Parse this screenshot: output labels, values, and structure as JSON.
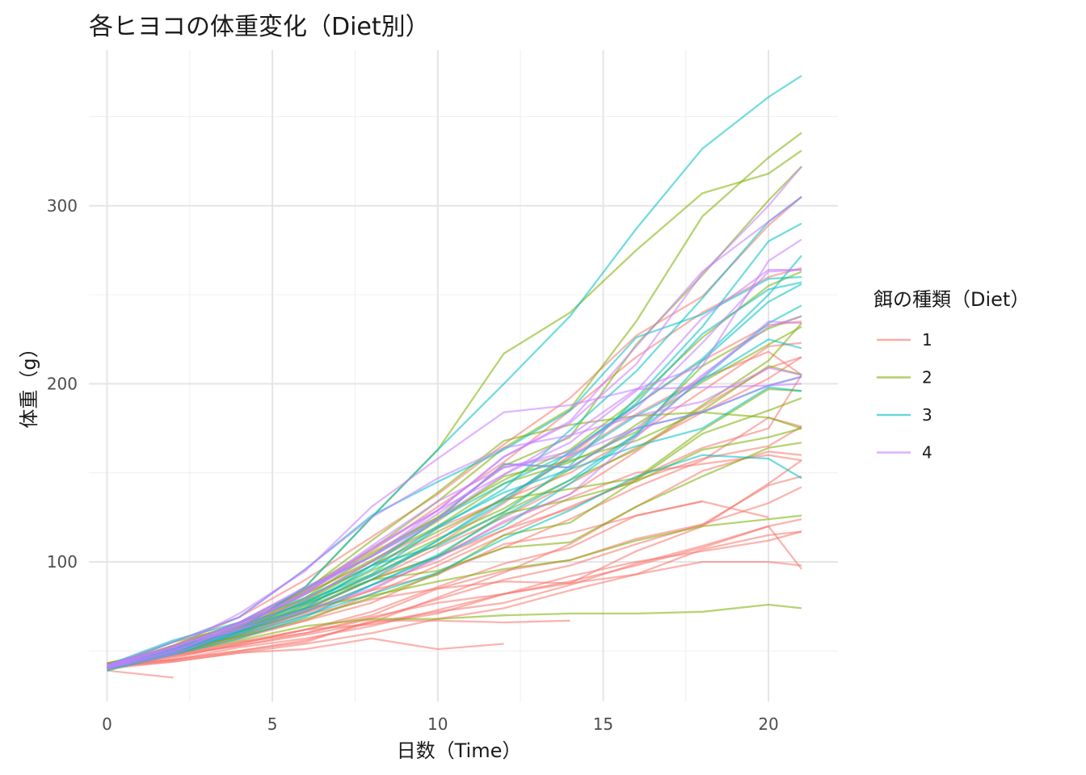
{
  "chart_data": {
    "type": "line",
    "title": "各ヒヨコの体重変化（Diet別）",
    "xlabel": "日数（Time）",
    "ylabel": "体重（g）",
    "xlim": [
      -0.55,
      22.1
    ],
    "ylim": [
      21.6,
      387.4
    ],
    "x_ticks": [
      0,
      5,
      10,
      15,
      20
    ],
    "y_ticks": [
      100,
      200,
      300
    ],
    "x_minor": [
      2.5,
      7.5,
      12.5,
      17.5
    ],
    "y_minor": [
      50,
      150,
      250,
      350
    ],
    "grid": true,
    "legend": {
      "title": "餌の種類（Diet）",
      "position": "right",
      "items": [
        {
          "label": "1",
          "color": "#F8766D"
        },
        {
          "label": "2",
          "color": "#7CAE00"
        },
        {
          "label": "3",
          "color": "#00BFC4"
        },
        {
          "label": "4",
          "color": "#C77CFF"
        }
      ]
    },
    "series_x": [
      0,
      2,
      4,
      6,
      8,
      10,
      12,
      14,
      16,
      18,
      20,
      21
    ],
    "chicks": [
      {
        "diet": "1",
        "weights": [
          40,
          46,
          54,
          62,
          72,
          86,
          99,
          108,
          126,
          134,
          125
        ]
      },
      {
        "diet": "1",
        "weights": [
          42,
          48,
          55,
          60,
          68,
          79,
          90,
          98,
          110,
          121,
          133,
          142
        ]
      },
      {
        "diet": "1",
        "weights": [
          43,
          48,
          53,
          59,
          66,
          72,
          77,
          87,
          99,
          109,
          120,
          124
        ]
      },
      {
        "diet": "1",
        "weights": [
          41,
          45,
          52,
          57,
          64,
          73,
          82,
          92,
          100,
          106,
          112,
          117
        ]
      },
      {
        "diet": "1",
        "weights": [
          41,
          44,
          49,
          54,
          60,
          68,
          74,
          84,
          93,
          100,
          100,
          98
        ]
      },
      {
        "diet": "1",
        "weights": [
          41,
          49,
          59,
          72,
          87,
          100,
          118,
          136,
          150,
          155,
          160,
          157
        ]
      },
      {
        "diet": "1",
        "weights": [
          40,
          48,
          57,
          67,
          82,
          98,
          115,
          131,
          146,
          158,
          165,
          176
        ]
      },
      {
        "diet": "1",
        "weights": [
          42,
          49,
          60,
          73,
          90,
          108,
          125,
          144,
          164,
          184,
          203,
          215
        ]
      },
      {
        "diet": "1",
        "weights": [
          41,
          51,
          64,
          82,
          100,
          119,
          135,
          150,
          171,
          196,
          221,
          223
        ]
      },
      {
        "diet": "1",
        "weights": [
          42,
          50,
          63,
          79,
          98,
          115,
          136,
          159,
          183,
          203,
          218,
          205
        ]
      },
      {
        "diet": "1",
        "weights": [
          43,
          51,
          60,
          76,
          92,
          110,
          133,
          160,
          188,
          213,
          233,
          235
        ]
      },
      {
        "diet": "1",
        "weights": [
          41,
          52,
          66,
          84,
          106,
          131,
          156,
          185,
          215,
          240,
          260,
          265
        ]
      },
      {
        "diet": "1",
        "weights": [
          40,
          53,
          69,
          90,
          114,
          138,
          166,
          192,
          227,
          249,
          289,
          305
        ]
      },
      {
        "diet": "1",
        "weights": [
          42,
          50,
          61,
          71,
          84,
          93,
          110,
          116,
          126,
          134
        ]
      },
      {
        "diet": "1",
        "weights": [
          41,
          49,
          58,
          70,
          79,
          85,
          89,
          88,
          93,
          107,
          115,
          117
        ]
      },
      {
        "diet": "1",
        "weights": [
          41,
          47,
          53,
          60,
          69,
          77,
          82,
          89,
          98,
          108,
          120,
          96
        ]
      },
      {
        "diet": "1",
        "weights": [
          41,
          47,
          54,
          62,
          70,
          85,
          95,
          101,
          113,
          121,
          143,
          148
        ]
      },
      {
        "diet": "1",
        "weights": [
          40,
          44,
          49,
          51,
          57,
          51,
          54
        ]
      },
      {
        "diet": "1",
        "weights": [
          43,
          45,
          50,
          55,
          67,
          67,
          66,
          67
        ]
      },
      {
        "diet": "1",
        "weights": [
          41,
          49,
          58,
          67,
          77,
          94,
          108,
          124,
          142,
          157,
          181,
          176
        ]
      },
      {
        "diet": "1",
        "weights": [
          42,
          52,
          62,
          74,
          90,
          103,
          118,
          130,
          147,
          164,
          175,
          205
        ]
      },
      {
        "diet": "1",
        "weights": [
          41,
          45,
          50,
          56,
          66,
          80,
          94,
          110,
          131,
          151,
          162,
          160
        ]
      },
      {
        "diet": "1",
        "weights": [
          40,
          49,
          58,
          72,
          84,
          103,
          122,
          138,
          162,
          187,
          209,
          215
        ]
      },
      {
        "diet": "1",
        "weights": [
          39,
          35
        ]
      },
      {
        "diet": "1",
        "weights": [
          43,
          48,
          55,
          62,
          65,
          71,
          82,
          88,
          106,
          120,
          144,
          157
        ]
      },
      {
        "diet": "2",
        "weights": [
          40,
          50,
          62,
          86,
          125,
          163,
          217,
          240,
          275,
          307,
          318,
          331
        ]
      },
      {
        "diet": "2",
        "weights": [
          41,
          55,
          64,
          77,
          90,
          95,
          108,
          111,
          131,
          148,
          164,
          167
        ]
      },
      {
        "diet": "2",
        "weights": [
          43,
          52,
          61,
          73,
          90,
          103,
          127,
          135,
          145,
          163,
          170,
          175
        ]
      },
      {
        "diet": "2",
        "weights": [
          41,
          52,
          63,
          74,
          81,
          89,
          96,
          101,
          112,
          120,
          124,
          126
        ]
      },
      {
        "diet": "2",
        "weights": [
          41,
          50,
          61,
          78,
          98,
          117,
          135,
          141,
          147,
          174,
          197,
          196
        ]
      },
      {
        "diet": "2",
        "weights": [
          40,
          52,
          62,
          82,
          101,
          120,
          144,
          156,
          173,
          210,
          231,
          238
        ]
      },
      {
        "diet": "2",
        "weights": [
          41,
          53,
          66,
          79,
          100,
          123,
          148,
          157,
          168,
          185,
          210,
          205
        ]
      },
      {
        "diet": "2",
        "weights": [
          39,
          50,
          62,
          80,
          104,
          125,
          154,
          170,
          222,
          261,
          303,
          322
        ]
      },
      {
        "diet": "2",
        "weights": [
          40,
          51,
          63,
          84,
          112,
          139,
          168,
          177,
          182,
          184,
          181,
          175
        ]
      },
      {
        "diet": "2",
        "weights": [
          41,
          49,
          63,
          85,
          107,
          134,
          164,
          186,
          235,
          294,
          327,
          341
        ]
      },
      {
        "diet": "2",
        "weights": [
          41,
          49,
          56,
          64,
          68,
          68,
          70,
          71,
          71,
          72,
          76,
          74
        ]
      },
      {
        "diet": "2",
        "weights": [
          41,
          48,
          59,
          75,
          93,
          110,
          128,
          146,
          163,
          188,
          213,
          234
        ]
      },
      {
        "diet": "2",
        "weights": [
          42,
          51,
          58,
          68,
          80,
          93,
          115,
          122,
          146,
          172,
          185,
          192
        ]
      },
      {
        "diet": "2",
        "weights": [
          43,
          51,
          62,
          77,
          95,
          113,
          130,
          152,
          177,
          201,
          222,
          232
        ]
      },
      {
        "diet": "2",
        "weights": [
          41,
          53,
          65,
          83,
          105,
          125,
          146,
          163,
          191,
          226,
          255,
          263
        ]
      },
      {
        "diet": "3",
        "weights": [
          41,
          49,
          61,
          74,
          98,
          109,
          128,
          154,
          192,
          232,
          280,
          290
        ]
      },
      {
        "diet": "3",
        "weights": [
          40,
          50,
          62,
          86,
          125,
          163,
          200,
          238,
          287,
          332,
          361,
          373
        ]
      },
      {
        "diet": "3",
        "weights": [
          41,
          55,
          69,
          96,
          126,
          145,
          163,
          185,
          226,
          239,
          259,
          260
        ]
      },
      {
        "diet": "3",
        "weights": [
          41,
          51,
          66,
          85,
          103,
          124,
          155,
          153,
          175,
          184,
          199,
          204
        ]
      },
      {
        "diet": "3",
        "weights": [
          41,
          49,
          61,
          74,
          90,
          112,
          134,
          162,
          188,
          214,
          250,
          272
        ]
      },
      {
        "diet": "3",
        "weights": [
          40,
          48,
          57,
          69,
          87,
          104,
          126,
          146,
          172,
          203,
          234,
          244
        ]
      },
      {
        "diet": "3",
        "weights": [
          42,
          50,
          61,
          76,
          92,
          112,
          136,
          158,
          182,
          202,
          225,
          220
        ]
      },
      {
        "diet": "3",
        "weights": [
          41,
          51,
          64,
          77,
          96,
          120,
          139,
          152,
          165,
          175,
          198,
          196
        ]
      },
      {
        "diet": "3",
        "weights": [
          42,
          56,
          66,
          80,
          98,
          124,
          144,
          161,
          189,
          228,
          253,
          257
        ]
      },
      {
        "diet": "3",
        "weights": [
          39,
          48,
          60,
          72,
          87,
          103,
          120,
          144,
          171,
          213,
          246,
          256
        ]
      },
      {
        "diet": "3",
        "weights": [
          40,
          51,
          62,
          78,
          93,
          119,
          141,
          174,
          207,
          248,
          291,
          305
        ]
      },
      {
        "diet": "3",
        "weights": [
          42,
          50,
          59,
          70,
          82,
          94,
          113,
          129,
          148,
          160,
          158,
          147
        ]
      },
      {
        "diet": "4",
        "weights": [
          42,
          51,
          66,
          85,
          103,
          124,
          155,
          153,
          175,
          184,
          199,
          204
        ]
      },
      {
        "diet": "4",
        "weights": [
          42,
          53,
          62,
          73,
          85,
          102,
          123,
          138,
          170,
          204,
          235,
          234
        ]
      },
      {
        "diet": "4",
        "weights": [
          41,
          49,
          65,
          82,
          107,
          129,
          159,
          179,
          221,
          263,
          291,
          305
        ]
      },
      {
        "diet": "4",
        "weights": [
          40,
          48,
          62,
          79,
          100,
          124,
          149,
          171,
          197,
          210,
          269,
          281
        ]
      },
      {
        "diet": "4",
        "weights": [
          41,
          52,
          71,
          95,
          131,
          158,
          184,
          188,
          197,
          198,
          199,
          200
        ]
      },
      {
        "diet": "4",
        "weights": [
          42,
          52,
          65,
          83,
          109,
          134,
          153,
          160,
          175,
          205,
          232,
          238
        ]
      },
      {
        "diet": "4",
        "weights": [
          41,
          50,
          64,
          83,
          103,
          129,
          159,
          178,
          211,
          262,
          300,
          322
        ]
      },
      {
        "diet": "4",
        "weights": [
          40,
          50,
          63,
          82,
          108,
          129,
          149,
          167,
          196,
          237,
          264,
          264
        ]
      },
      {
        "diet": "4",
        "weights": [
          41,
          52,
          66,
          86,
          103,
          127,
          153,
          162,
          186,
          223,
          263,
          264
        ]
      },
      {
        "diet": "4",
        "weights": [
          42,
          55,
          69,
          96,
          125,
          147,
          164,
          171,
          182,
          190,
          209,
          205
        ]
      }
    ]
  }
}
